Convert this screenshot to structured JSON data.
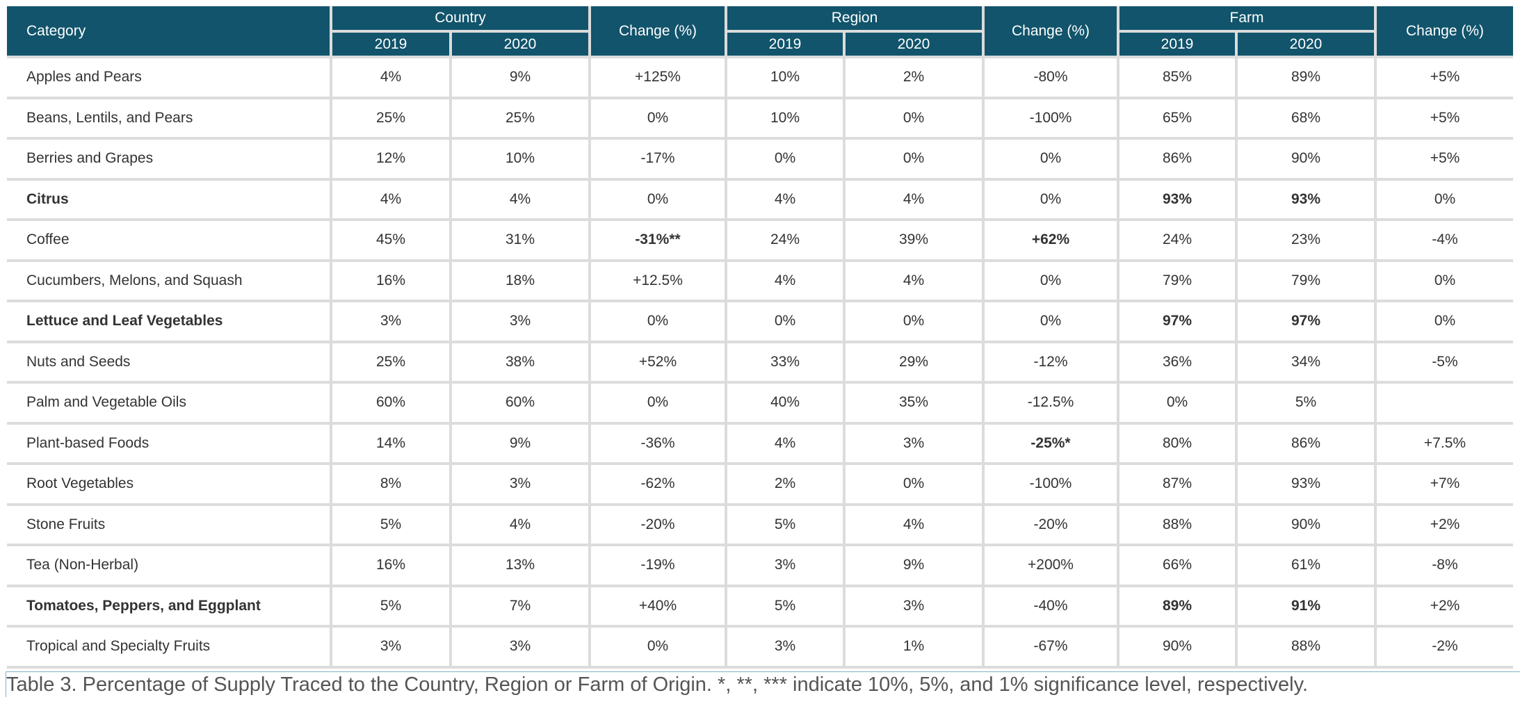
{
  "header": {
    "category": "Category",
    "groups": [
      "Country",
      "Region",
      "Farm"
    ],
    "change": "Change (%)",
    "years": [
      "2019",
      "2020"
    ]
  },
  "rows": [
    {
      "category": "Apples and Pears",
      "bold": false,
      "c19": "4%",
      "c20": "9%",
      "cchg": "+125%",
      "r19": "10%",
      "r20": "2%",
      "rchg": "-80%",
      "f19": "85%",
      "f20": "89%",
      "fchg": "+5%"
    },
    {
      "category": "Beans, Lentils, and Pears",
      "bold": false,
      "c19": "25%",
      "c20": "25%",
      "cchg": "0%",
      "r19": "10%",
      "r20": "0%",
      "rchg": "-100%",
      "f19": "65%",
      "f20": "68%",
      "fchg": "+5%"
    },
    {
      "category": "Berries and Grapes",
      "bold": false,
      "c19": "12%",
      "c20": "10%",
      "cchg": "-17%",
      "r19": "0%",
      "r20": "0%",
      "rchg": "0%",
      "f19": "86%",
      "f20": "90%",
      "fchg": "+5%"
    },
    {
      "category": "Citrus",
      "bold": true,
      "c19": "4%",
      "c20": "4%",
      "cchg": "0%",
      "r19": "4%",
      "r20": "4%",
      "rchg": "0%",
      "f19": "93%",
      "f20": "93%",
      "fchg": "0%",
      "boldCells": [
        "f19",
        "f20"
      ]
    },
    {
      "category": "Coffee",
      "bold": false,
      "c19": "45%",
      "c20": "31%",
      "cchg": "-31%**",
      "r19": "24%",
      "r20": "39%",
      "rchg": "+62%",
      "f19": "24%",
      "f20": "23%",
      "fchg": "-4%",
      "boldCells": [
        "cchg",
        "rchg"
      ]
    },
    {
      "category": "Cucumbers, Melons, and Squash",
      "bold": false,
      "c19": "16%",
      "c20": "18%",
      "cchg": "+12.5%",
      "r19": "4%",
      "r20": "4%",
      "rchg": "0%",
      "f19": "79%",
      "f20": "79%",
      "fchg": "0%"
    },
    {
      "category": "Lettuce and Leaf Vegetables",
      "bold": true,
      "c19": "3%",
      "c20": "3%",
      "cchg": "0%",
      "r19": "0%",
      "r20": "0%",
      "rchg": "0%",
      "f19": "97%",
      "f20": "97%",
      "fchg": "0%",
      "boldCells": [
        "f19",
        "f20"
      ]
    },
    {
      "category": "Nuts and Seeds",
      "bold": false,
      "c19": "25%",
      "c20": "38%",
      "cchg": "+52%",
      "r19": "33%",
      "r20": "29%",
      "rchg": "-12%",
      "f19": "36%",
      "f20": "34%",
      "fchg": "-5%"
    },
    {
      "category": "Palm and Vegetable Oils",
      "bold": false,
      "c19": "60%",
      "c20": "60%",
      "cchg": "0%",
      "r19": "40%",
      "r20": "35%",
      "rchg": "-12.5%",
      "f19": "0%",
      "f20": "5%",
      "fchg": ""
    },
    {
      "category": "Plant-based Foods",
      "bold": false,
      "c19": "14%",
      "c20": "9%",
      "cchg": "-36%",
      "r19": "4%",
      "r20": "3%",
      "rchg": "-25%*",
      "f19": "80%",
      "f20": "86%",
      "fchg": "+7.5%",
      "boldCells": [
        "rchg"
      ]
    },
    {
      "category": "Root Vegetables",
      "bold": false,
      "c19": "8%",
      "c20": "3%",
      "cchg": "-62%",
      "r19": "2%",
      "r20": "0%",
      "rchg": "-100%",
      "f19": "87%",
      "f20": "93%",
      "fchg": "+7%"
    },
    {
      "category": "Stone Fruits",
      "bold": false,
      "c19": "5%",
      "c20": "4%",
      "cchg": "-20%",
      "r19": "5%",
      "r20": "4%",
      "rchg": "-20%",
      "f19": "88%",
      "f20": "90%",
      "fchg": "+2%"
    },
    {
      "category": "Tea (Non-Herbal)",
      "bold": false,
      "c19": "16%",
      "c20": "13%",
      "cchg": "-19%",
      "r19": "3%",
      "r20": "9%",
      "rchg": "+200%",
      "f19": "66%",
      "f20": "61%",
      "fchg": "-8%"
    },
    {
      "category": "Tomatoes, Peppers, and Eggplant",
      "bold": true,
      "c19": "5%",
      "c20": "7%",
      "cchg": "+40%",
      "r19": "5%",
      "r20": "3%",
      "rchg": "-40%",
      "f19": "89%",
      "f20": "91%",
      "fchg": "+2%",
      "boldCells": [
        "f19",
        "f20"
      ]
    },
    {
      "category": "Tropical and Specialty Fruits",
      "bold": false,
      "c19": "3%",
      "c20": "3%",
      "cchg": "0%",
      "r19": "3%",
      "r20": "1%",
      "rchg": "-67%",
      "f19": "90%",
      "f20": "88%",
      "fchg": "-2%"
    }
  ],
  "caption": "Table 3. Percentage of Supply Traced to the Country, Region or Farm of Origin.  *, **, *** indicate 10%, 5%, and 1% significance level, respectively.",
  "colors": {
    "header_bg": "#11546b",
    "header_text": "#ffffff",
    "grid": "#dcdcdc"
  }
}
